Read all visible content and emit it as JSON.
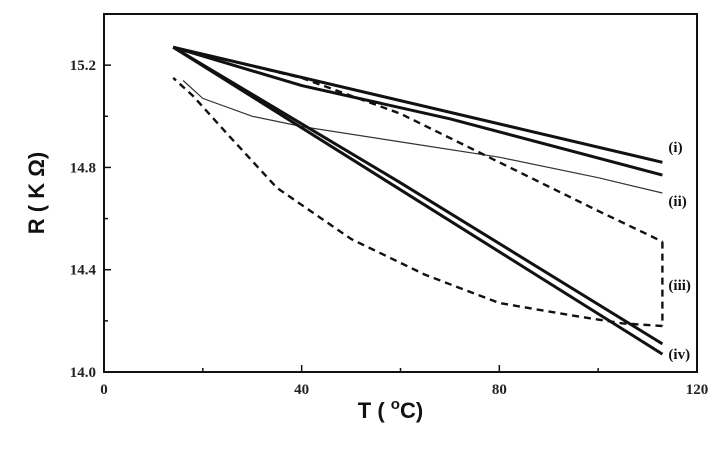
{
  "chart_data": {
    "type": "line",
    "title": "",
    "xlabel": "T ( oC)",
    "xlabel_parts": {
      "prefix": "T ( ",
      "sup": "o",
      "suffix": "C)"
    },
    "ylabel": "R ( K Ω)",
    "xlim": [
      0,
      120
    ],
    "ylim": [
      14.0,
      15.4
    ],
    "xticks": [
      0,
      40,
      80,
      120
    ],
    "xtick_labels": [
      "0",
      "40",
      "80",
      "120"
    ],
    "yticks": [
      14.0,
      14.4,
      14.8,
      15.2
    ],
    "ytick_labels": [
      "14.0",
      "14.4",
      "14.8",
      "15.2"
    ],
    "grid": false,
    "legend": "none",
    "series_labels": [
      "(i)",
      "(ii)",
      "(iii)",
      "(iv)"
    ],
    "series": [
      {
        "label_index": 0,
        "style": "solid-thick",
        "up": [
          [
            14,
            15.27
          ],
          [
            113,
            14.82
          ]
        ],
        "down": [
          [
            113,
            14.77
          ],
          [
            70,
            14.99
          ],
          [
            40,
            15.12
          ],
          [
            14,
            15.27
          ]
        ]
      },
      {
        "label_index": 1,
        "style": "solid-thin",
        "up": [
          [
            16,
            15.14
          ],
          [
            20,
            15.07
          ],
          [
            30,
            15.0
          ],
          [
            40,
            14.96
          ],
          [
            60,
            14.9
          ],
          [
            80,
            14.84
          ],
          [
            100,
            14.76
          ],
          [
            113,
            14.7
          ]
        ],
        "down": [
          [
            113,
            14.77
          ]
        ]
      },
      {
        "label_index": 2,
        "style": "dashed",
        "up": [
          [
            14,
            15.27
          ],
          [
            40,
            15.15
          ],
          [
            60,
            15.01
          ],
          [
            80,
            14.82
          ],
          [
            100,
            14.63
          ],
          [
            113,
            14.51
          ]
        ],
        "vertical": [
          [
            113,
            14.51
          ],
          [
            113,
            14.18
          ]
        ],
        "down": [
          [
            113,
            14.18
          ],
          [
            105,
            14.19
          ],
          [
            95,
            14.22
          ],
          [
            80,
            14.27
          ],
          [
            65,
            14.38
          ],
          [
            50,
            14.52
          ],
          [
            35,
            14.72
          ],
          [
            25,
            14.93
          ],
          [
            18,
            15.08
          ],
          [
            14,
            15.15
          ]
        ]
      },
      {
        "label_index": 3,
        "style": "solid-thick",
        "up": [
          [
            14,
            15.27
          ],
          [
            113,
            14.07
          ]
        ],
        "down": [
          [
            113,
            14.11
          ],
          [
            60,
            14.74
          ],
          [
            14,
            15.27
          ]
        ]
      }
    ],
    "label_positions_data": [
      [
        113,
        14.86
      ],
      [
        113,
        14.65
      ],
      [
        113,
        14.32
      ],
      [
        113,
        14.05
      ]
    ]
  }
}
